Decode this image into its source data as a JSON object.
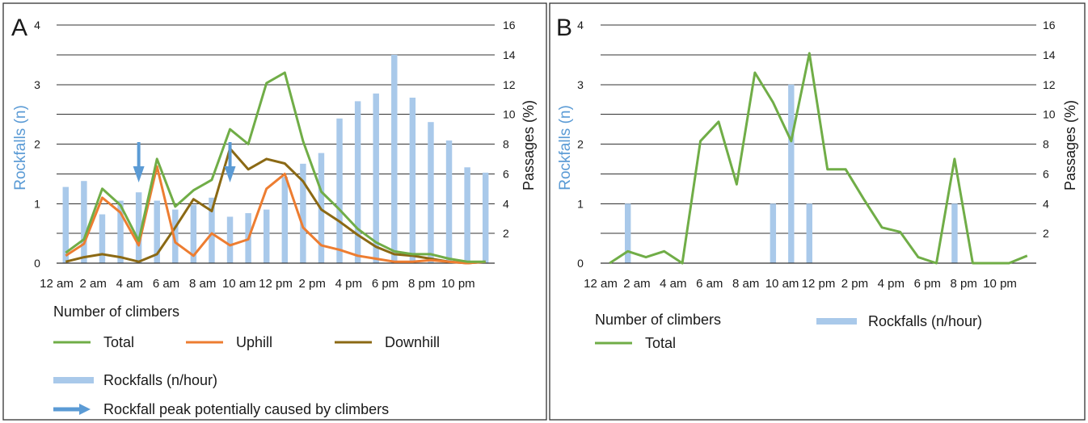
{
  "colors": {
    "total": "#70ad47",
    "uphill": "#ed7d31",
    "downhill": "#8b6914",
    "rockfalls": "#a9c9ea",
    "arrow": "#5b9bd5",
    "left_axis_label": "#5b9bd5"
  },
  "chart_data": [
    {
      "panel": "A",
      "type": "bar+line",
      "ylabel_left": "Rockfalls  (n)",
      "ylabel_right": "Passages (%)",
      "ylim_left": [
        0,
        4
      ],
      "ylim_right": [
        0,
        16
      ],
      "yticks_left": [
        "0",
        "1",
        "2",
        "3",
        "4"
      ],
      "yticks_right": [
        "2",
        "4",
        "6",
        "8",
        "10",
        "12",
        "14",
        "16"
      ],
      "grid": true,
      "x_labels": [
        "12 am",
        "2 am",
        "4 am",
        "6 am",
        "8 am",
        "10 am",
        "12 pm",
        "2 pm",
        "4 pm",
        "6 pm",
        "8 pm",
        "10 pm"
      ],
      "hours": [
        0,
        1,
        2,
        3,
        4,
        5,
        6,
        7,
        8,
        9,
        10,
        11,
        12,
        13,
        14,
        15,
        16,
        17,
        18,
        19,
        20,
        21,
        22,
        23
      ],
      "rockfalls_n_per_hour": [
        1.28,
        1.38,
        0.82,
        1.05,
        1.19,
        1.05,
        0.9,
        0.98,
        1.1,
        0.78,
        0.84,
        0.9,
        1.45,
        1.67,
        1.85,
        2.43,
        2.72,
        2.85,
        3.5,
        2.78,
        2.37,
        2.06,
        1.61,
        1.52
      ],
      "series": [
        {
          "name": "Total",
          "values": [
            0.7,
            1.6,
            5.0,
            3.9,
            1.5,
            7.0,
            3.8,
            4.9,
            5.6,
            9.0,
            8.0,
            12.1,
            12.8,
            8.2,
            4.8,
            3.6,
            2.3,
            1.4,
            0.8,
            0.6,
            0.6,
            0.3,
            0.1,
            0.1
          ]
        },
        {
          "name": "Uphill",
          "values": [
            0.5,
            1.3,
            4.4,
            3.4,
            1.2,
            6.5,
            1.4,
            0.5,
            2.0,
            1.2,
            1.6,
            5.0,
            6.0,
            2.4,
            1.2,
            0.9,
            0.5,
            0.3,
            0.1,
            0.1,
            0.2,
            0.1,
            0.0,
            0.1
          ]
        },
        {
          "name": "Downhill",
          "values": [
            0.1,
            0.4,
            0.6,
            0.4,
            0.1,
            0.6,
            2.4,
            4.3,
            3.5,
            7.7,
            6.3,
            7.0,
            6.7,
            5.5,
            3.6,
            2.8,
            1.9,
            1.1,
            0.6,
            0.5,
            0.3,
            0.1,
            0.0,
            0.1
          ]
        }
      ],
      "arrows_at_hours": [
        4,
        9
      ]
    },
    {
      "panel": "B",
      "type": "bar+line",
      "ylabel_left": "Rockfalls  (n)",
      "ylabel_right": "Passages (%)",
      "ylim_left": [
        0,
        4
      ],
      "ylim_right": [
        0,
        16
      ],
      "yticks_left": [
        "0",
        "1",
        "2",
        "3",
        "4"
      ],
      "yticks_right": [
        "2",
        "4",
        "6",
        "8",
        "10",
        "12",
        "14",
        "16"
      ],
      "grid": true,
      "x_labels": [
        "12 am",
        "2 am",
        "4 am",
        "6 am",
        "8 am",
        "10 am",
        "12 pm",
        "2 pm",
        "4 pm",
        "6 pm",
        "8 pm",
        "10 pm"
      ],
      "hours": [
        0,
        1,
        2,
        3,
        4,
        5,
        6,
        7,
        8,
        9,
        10,
        11,
        12,
        13,
        14,
        15,
        16,
        17,
        18,
        19,
        20,
        21,
        22,
        23
      ],
      "rockfalls_n_per_hour": [
        0,
        1,
        0,
        0,
        0,
        0,
        0,
        0,
        0,
        1,
        3,
        1,
        0,
        0,
        0,
        0,
        0,
        0,
        0,
        1,
        0,
        0,
        0,
        0
      ],
      "series": [
        {
          "name": "Total",
          "values": [
            0.0,
            0.8,
            0.4,
            0.8,
            0.0,
            8.2,
            9.5,
            5.3,
            12.8,
            10.8,
            8.2,
            14.1,
            6.3,
            6.3,
            4.3,
            2.4,
            2.1,
            0.4,
            0.0,
            7.0,
            0.0,
            0.0,
            0.0,
            0.5
          ]
        }
      ]
    }
  ],
  "legend": {
    "A": {
      "heading": "Number of climbers",
      "total": "Total",
      "uphill": "Uphill",
      "downhill": "Downhill",
      "rockfalls": "Rockfalls (n/hour)",
      "arrow": "Rockfall peak potentially caused by climbers"
    },
    "B": {
      "heading": "Number of climbers",
      "total": "Total",
      "rockfalls": "Rockfalls (n/hour)"
    }
  }
}
